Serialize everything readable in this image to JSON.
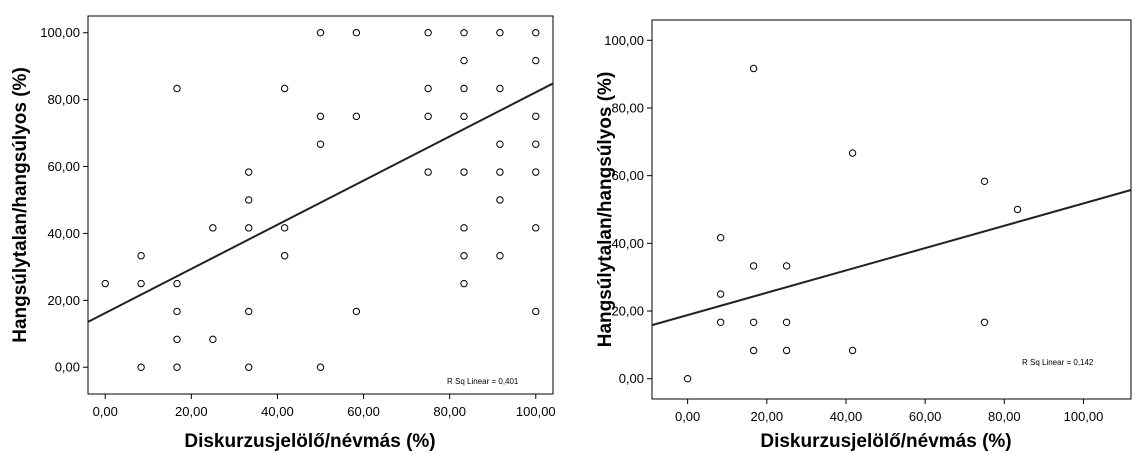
{
  "chart_data": [
    {
      "type": "scatter",
      "xlabel": "Diskurzusjelölő/névmás (%)",
      "ylabel": "Hangsúlytalan/hangsúlyos (%)",
      "xlim": [
        -4,
        104
      ],
      "ylim": [
        -8,
        105
      ],
      "xticks": [
        "0,00",
        "20,00",
        "40,00",
        "60,00",
        "80,00",
        "100,00"
      ],
      "yticks": [
        "0,00",
        "20,00",
        "40,00",
        "60,00",
        "80,00",
        "100,00"
      ],
      "annotation": "R Sq Linear = 0,401",
      "fit_line": {
        "intercept": 16.2,
        "slope": 0.66
      },
      "points": [
        {
          "x": 0,
          "y": 25
        },
        {
          "x": 8.33,
          "y": 33.33
        },
        {
          "x": 8.33,
          "y": 25
        },
        {
          "x": 8.33,
          "y": 0
        },
        {
          "x": 16.67,
          "y": 83.33
        },
        {
          "x": 16.67,
          "y": 25
        },
        {
          "x": 16.67,
          "y": 16.67
        },
        {
          "x": 16.67,
          "y": 8.33
        },
        {
          "x": 16.67,
          "y": 0
        },
        {
          "x": 25,
          "y": 41.67
        },
        {
          "x": 25,
          "y": 8.33
        },
        {
          "x": 33.33,
          "y": 58.33
        },
        {
          "x": 33.33,
          "y": 50
        },
        {
          "x": 33.33,
          "y": 41.67
        },
        {
          "x": 33.33,
          "y": 16.67
        },
        {
          "x": 33.33,
          "y": 0
        },
        {
          "x": 41.67,
          "y": 83.33
        },
        {
          "x": 41.67,
          "y": 41.67
        },
        {
          "x": 41.67,
          "y": 33.33
        },
        {
          "x": 50,
          "y": 100
        },
        {
          "x": 50,
          "y": 75
        },
        {
          "x": 50,
          "y": 66.67
        },
        {
          "x": 50,
          "y": 0
        },
        {
          "x": 58.33,
          "y": 100
        },
        {
          "x": 58.33,
          "y": 75
        },
        {
          "x": 58.33,
          "y": 16.67
        },
        {
          "x": 75,
          "y": 100
        },
        {
          "x": 75,
          "y": 83.33
        },
        {
          "x": 75,
          "y": 75
        },
        {
          "x": 75,
          "y": 58.33
        },
        {
          "x": 83.33,
          "y": 100
        },
        {
          "x": 83.33,
          "y": 91.67
        },
        {
          "x": 83.33,
          "y": 83.33
        },
        {
          "x": 83.33,
          "y": 75
        },
        {
          "x": 83.33,
          "y": 58.33
        },
        {
          "x": 83.33,
          "y": 41.67
        },
        {
          "x": 83.33,
          "y": 33.33
        },
        {
          "x": 83.33,
          "y": 25
        },
        {
          "x": 91.67,
          "y": 100
        },
        {
          "x": 91.67,
          "y": 83.33
        },
        {
          "x": 91.67,
          "y": 66.67
        },
        {
          "x": 91.67,
          "y": 58.33
        },
        {
          "x": 91.67,
          "y": 50
        },
        {
          "x": 91.67,
          "y": 33.33
        },
        {
          "x": 100,
          "y": 100
        },
        {
          "x": 100,
          "y": 91.67
        },
        {
          "x": 100,
          "y": 75
        },
        {
          "x": 100,
          "y": 66.67
        },
        {
          "x": 100,
          "y": 58.33
        },
        {
          "x": 100,
          "y": 41.67
        },
        {
          "x": 100,
          "y": 16.67
        }
      ]
    },
    {
      "type": "scatter",
      "xlabel": "Diskurzusjelölő/névmás (%)",
      "ylabel": "Hangsúlytalan/hangsúlyos (%)",
      "xlim": [
        -9,
        112
      ],
      "ylim": [
        -6,
        106
      ],
      "xticks": [
        "0,00",
        "20,00",
        "40,00",
        "60,00",
        "80,00",
        "100,00"
      ],
      "yticks": [
        "0,00",
        "20,00",
        "40,00",
        "60,00",
        "80,00",
        "100,00"
      ],
      "annotation": "R Sq Linear = 0,142",
      "fit_line": {
        "intercept": 18.8,
        "slope": 0.33
      },
      "points": [
        {
          "x": 0,
          "y": 0
        },
        {
          "x": 8.33,
          "y": 41.67
        },
        {
          "x": 8.33,
          "y": 25
        },
        {
          "x": 8.33,
          "y": 16.67
        },
        {
          "x": 16.67,
          "y": 91.67
        },
        {
          "x": 16.67,
          "y": 33.33
        },
        {
          "x": 16.67,
          "y": 16.67
        },
        {
          "x": 16.67,
          "y": 8.33
        },
        {
          "x": 25,
          "y": 33.33
        },
        {
          "x": 25,
          "y": 16.67
        },
        {
          "x": 25,
          "y": 8.33
        },
        {
          "x": 41.67,
          "y": 66.67
        },
        {
          "x": 41.67,
          "y": 8.33
        },
        {
          "x": 75,
          "y": 58.33
        },
        {
          "x": 75,
          "y": 16.67
        },
        {
          "x": 83.33,
          "y": 50
        }
      ]
    }
  ]
}
